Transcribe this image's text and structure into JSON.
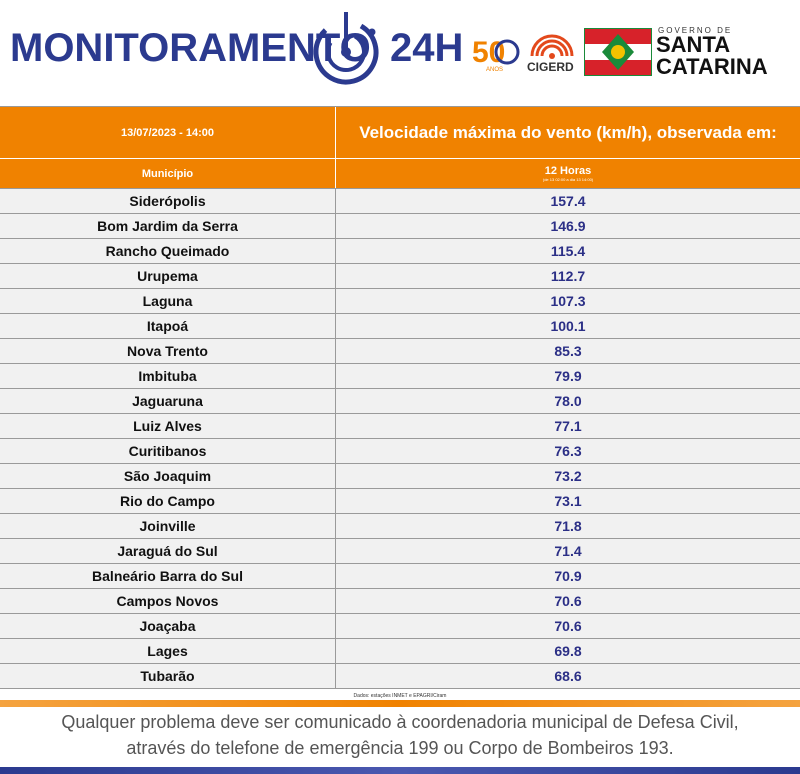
{
  "header": {
    "brand_title": "MONITORAMENTO",
    "brand_24h": "24H",
    "logo_50": "50",
    "logo_50_sub": "ANOS",
    "cigerd": "CIGERD",
    "gov_top": "GOVERNO DE",
    "gov_santa": "SANTA",
    "gov_catarina": "CATARINA"
  },
  "table": {
    "date": "13/07/2023 - 14:00",
    "title": "Velocidade máxima do vento (km/h), observada em:",
    "municipio_label": "Município",
    "hours_label": "12 Horas",
    "range_label": "(de 13 02:00 a dia 13 14:00)",
    "rows": [
      {
        "name": "Siderópolis",
        "value": "157.4"
      },
      {
        "name": "Bom Jardim da Serra",
        "value": "146.9"
      },
      {
        "name": "Rancho Queimado",
        "value": "115.4"
      },
      {
        "name": "Urupema",
        "value": "112.7"
      },
      {
        "name": "Laguna",
        "value": "107.3"
      },
      {
        "name": "Itapoá",
        "value": "100.1"
      },
      {
        "name": "Nova Trento",
        "value": "85.3"
      },
      {
        "name": "Imbituba",
        "value": "79.9"
      },
      {
        "name": "Jaguaruna",
        "value": "78.0"
      },
      {
        "name": "Luiz Alves",
        "value": "77.1"
      },
      {
        "name": "Curitibanos",
        "value": "76.3"
      },
      {
        "name": "São Joaquim",
        "value": "73.2"
      },
      {
        "name": "Rio do Campo",
        "value": "73.1"
      },
      {
        "name": "Joinville",
        "value": "71.8"
      },
      {
        "name": "Jaraguá do Sul",
        "value": "71.4"
      },
      {
        "name": "Balneário Barra do Sul",
        "value": "70.9"
      },
      {
        "name": "Campos Novos",
        "value": "70.6"
      },
      {
        "name": "Joaçaba",
        "value": "70.6"
      },
      {
        "name": "Lages",
        "value": "69.8"
      },
      {
        "name": "Tubarão",
        "value": "68.6"
      }
    ],
    "source": "Dados: estações INMET e EPAGRI/Ciram"
  },
  "footer": {
    "line1": "Qualquer problema deve ser comunicado à coordenadoria municipal de Defesa Civil,",
    "line2": "através do telefone de emergência 199 ou Corpo de Bombeiros 193."
  },
  "colors": {
    "brand_blue": "#2b3a8f",
    "header_orange": "#f08200",
    "value_blue": "#2b2f86"
  }
}
